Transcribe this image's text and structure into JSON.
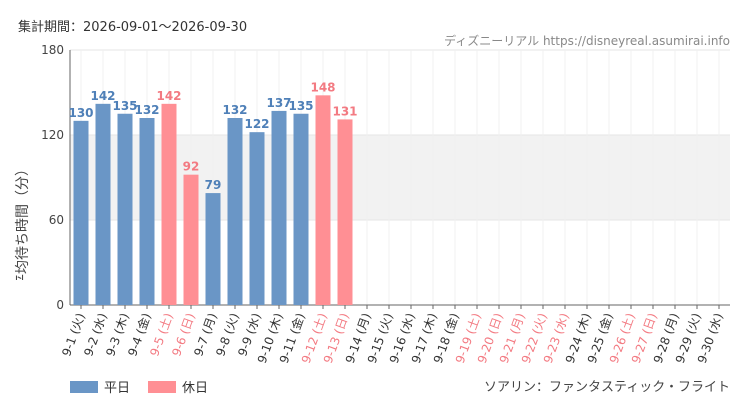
{
  "header": {
    "period": "集計期間：2026-09-01〜2026-09-30",
    "source": "ディズニーリアル https://disneyreal.asumirai.info"
  },
  "footer": {
    "attraction": "ソアリン：ファンタスティック・フライト"
  },
  "colors": {
    "weekday": "#6a96c6",
    "holiday": "#ff8f94",
    "weekday_label": "#4f80b8",
    "holiday_label": "#f37a82",
    "band": "#f2f2f2",
    "grid": "#e6e6e6"
  },
  "chart_data": {
    "type": "bar",
    "ylabel": "平均待ち時間（分）",
    "ylim": [
      0,
      180
    ],
    "yticks": [
      0,
      60,
      120,
      180
    ],
    "shaded_band": [
      60,
      120
    ],
    "legend": [
      "平日",
      "休日"
    ],
    "legend_position": "bottom-left",
    "categories": [
      "9-1 (火)",
      "9-2 (水)",
      "9-3 (木)",
      "9-4 (金)",
      "9-5 (土)",
      "9-6 (日)",
      "9-7 (月)",
      "9-8 (火)",
      "9-9 (水)",
      "9-10 (木)",
      "9-11 (金)",
      "9-12 (土)",
      "9-13 (日)",
      "9-14 (月)",
      "9-15 (火)",
      "9-16 (水)",
      "9-17 (木)",
      "9-18 (金)",
      "9-19 (土)",
      "9-20 (日)",
      "9-21 (月)",
      "9-22 (火)",
      "9-23 (水)",
      "9-24 (木)",
      "9-25 (金)",
      "9-26 (土)",
      "9-27 (日)",
      "9-28 (月)",
      "9-29 (火)",
      "9-30 (水)"
    ],
    "day_type": [
      "平日",
      "平日",
      "平日",
      "平日",
      "休日",
      "休日",
      "平日",
      "平日",
      "平日",
      "平日",
      "平日",
      "休日",
      "休日",
      "平日",
      "平日",
      "平日",
      "平日",
      "平日",
      "休日",
      "休日",
      "休日",
      "休日",
      "休日",
      "平日",
      "平日",
      "休日",
      "休日",
      "平日",
      "平日",
      "平日"
    ],
    "values": [
      130,
      142,
      135,
      132,
      142,
      92,
      79,
      132,
      122,
      137,
      135,
      148,
      131,
      null,
      null,
      null,
      null,
      null,
      null,
      null,
      null,
      null,
      null,
      null,
      null,
      null,
      null,
      null,
      null,
      null
    ]
  }
}
